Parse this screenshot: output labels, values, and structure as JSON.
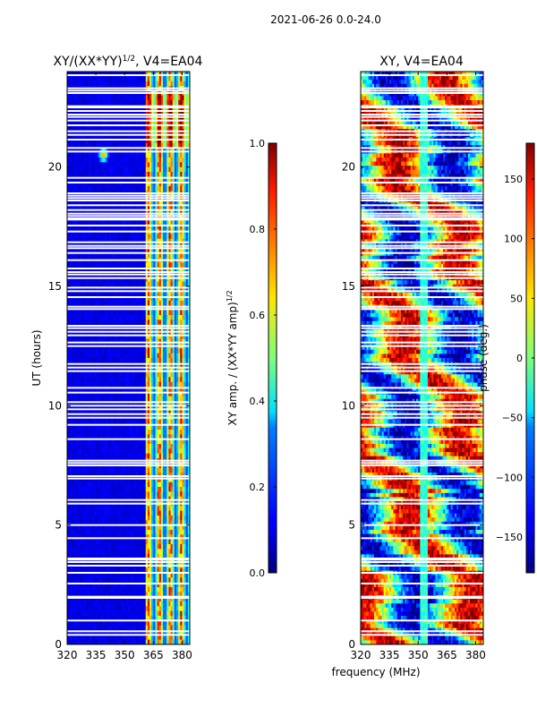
{
  "suptitle": "2021-06-26 0.0-24.0",
  "chart_data": [
    {
      "type": "heatmap",
      "title_main": "XY/(XX*YY)",
      "title_sup": "1/2",
      "title_suffix": ", V4=EA04",
      "xlabel": "",
      "ylabel": "UT (hours)",
      "xlim": [
        320,
        384
      ],
      "ylim": [
        0,
        24
      ],
      "xticks": [
        320,
        335,
        350,
        365,
        380
      ],
      "yticks": [
        0,
        5,
        10,
        15,
        20
      ],
      "colorbar": {
        "label_main": "XY amp. / (XX*YY amp)",
        "label_sup": "1/2",
        "range": [
          0.0,
          1.0
        ],
        "ticks": [
          "0.0",
          "0.2",
          "0.4",
          "0.6",
          "0.8",
          "1.0"
        ],
        "tick_values": [
          0.0,
          0.2,
          0.4,
          0.6,
          0.8,
          1.0
        ]
      },
      "colormap": "jet",
      "description_values": {
        "low_band_mhz": [
          320,
          361
        ],
        "low_band_level": 0.1,
        "high_band_mhz": [
          361,
          384
        ],
        "high_band_level_range": [
          0.2,
          0.95
        ],
        "bright_spot_ut": 20.5,
        "bright_spot_mhz": 339
      }
    },
    {
      "type": "heatmap",
      "title": "XY, V4=EA04",
      "xlabel": "frequency (MHz)",
      "ylabel": "",
      "xlim": [
        320,
        384
      ],
      "ylim": [
        0,
        24
      ],
      "xticks": [
        320,
        335,
        350,
        365,
        380
      ],
      "yticks": [
        0,
        5,
        10,
        15,
        20
      ],
      "colorbar": {
        "label": "phase (deg.)",
        "range": [
          -180,
          180
        ],
        "ticks": [
          "−150",
          "−100",
          "−50",
          "0",
          "50",
          "100",
          "150"
        ],
        "tick_values": [
          -150,
          -100,
          -50,
          0,
          50,
          100,
          150
        ]
      },
      "colormap": "jet"
    }
  ],
  "blank_rows_ut": [
    0.4,
    0.55,
    1.0,
    1.95,
    2.0,
    2.55,
    3.0,
    3.3,
    3.45,
    3.55,
    3.6,
    4.45,
    5.0,
    5.9,
    6.05,
    6.95,
    7.05,
    7.5,
    7.6,
    7.7,
    8.6,
    9.2,
    9.5,
    9.65,
    9.85,
    10.0,
    10.15,
    10.55,
    10.75,
    11.45,
    11.6,
    11.75,
    12.5,
    12.65,
    12.95,
    13.1,
    13.25,
    13.35,
    14.05,
    14.15,
    14.55,
    14.8,
    14.95,
    15.35,
    15.5,
    15.6,
    15.75,
    16.1,
    16.4,
    16.6,
    16.7,
    16.85,
    17.3,
    17.55,
    17.8,
    17.85,
    17.95,
    18.05,
    18.2,
    18.4,
    18.6,
    18.7,
    18.8,
    18.9,
    19.35,
    19.55,
    20.65,
    20.8,
    21.15,
    21.35,
    21.5,
    21.75,
    21.95,
    22.1,
    22.2,
    22.35,
    22.5,
    22.55,
    23.1,
    23.2,
    23.3,
    23.85
  ]
}
